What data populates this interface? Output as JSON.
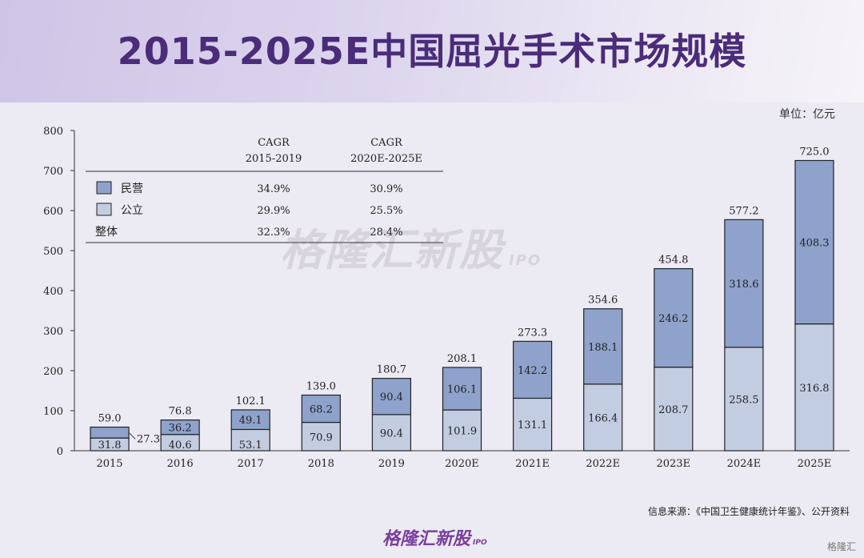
{
  "title": "2015-2025E中国屈光手术市场规模",
  "unit": "单位：亿元",
  "source": "信息来源：《中国卫生健康统计年鉴》、公开资料",
  "brand": {
    "name": "格隆汇新股",
    "sub": "IPO"
  },
  "watermark": {
    "name": "格隆汇新股",
    "sub": "IPO"
  },
  "corner_mark": "格隆汇",
  "colors": {
    "private": "#8ea2cc",
    "public": "#c3cde2",
    "edge": "#222222",
    "title": "#4a2c7a"
  },
  "chart_data": {
    "type": "bar",
    "stacked": true,
    "categories": [
      "2015",
      "2016",
      "2017",
      "2018",
      "2019",
      "2020E",
      "2021E",
      "2022E",
      "2023E",
      "2024E",
      "2025E"
    ],
    "series": [
      {
        "name": "公立",
        "values": [
          31.8,
          40.6,
          53.1,
          70.9,
          90.4,
          101.9,
          131.1,
          166.4,
          208.7,
          258.5,
          316.8
        ]
      },
      {
        "name": "民营",
        "values": [
          27.3,
          36.2,
          49.1,
          68.2,
          90.4,
          106.1,
          142.2,
          188.1,
          246.2,
          318.6,
          408.3
        ]
      }
    ],
    "totals": [
      59.0,
      76.8,
      102.1,
      139.0,
      180.7,
      208.1,
      273.3,
      354.6,
      454.8,
      577.2,
      725.0
    ],
    "ylim": [
      0,
      800
    ],
    "yticks": [
      0,
      100,
      200,
      300,
      400,
      500,
      600,
      700,
      800
    ],
    "xlabel": "",
    "ylabel": "",
    "legend_table": {
      "headers": [
        {
          "line1": "CAGR",
          "line2": "2015-2019"
        },
        {
          "line1": "CAGR",
          "line2": "2020E-2025E"
        }
      ],
      "rows": [
        {
          "label": "民营",
          "swatch": "private",
          "v1": "34.9%",
          "v2": "30.9%"
        },
        {
          "label": "公立",
          "swatch": "public",
          "v1": "29.9%",
          "v2": "25.5%"
        },
        {
          "label": "整体",
          "swatch": null,
          "v1": "32.3%",
          "v2": "28.4%"
        }
      ]
    }
  }
}
